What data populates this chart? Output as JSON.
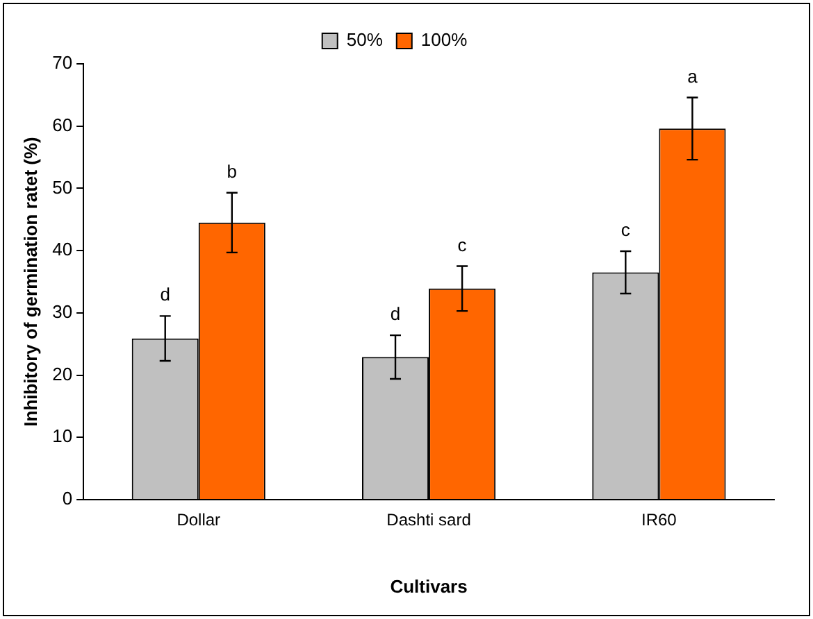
{
  "chart_data": {
    "type": "bar",
    "xlabel": "Cultivars",
    "ylabel": "Inhibitory of germination ratet (%)",
    "categories": [
      "Dollar",
      "Dashti sard",
      "IR60"
    ],
    "series": [
      {
        "name": "50%",
        "color": "#c0c0c0",
        "values": [
          25.9,
          22.9,
          36.5
        ],
        "errors": [
          3.6,
          3.5,
          3.4
        ]
      },
      {
        "name": "100%",
        "color": "#ff6600",
        "values": [
          44.5,
          33.9,
          59.6
        ],
        "errors": [
          4.8,
          3.6,
          5
        ]
      }
    ],
    "ylim": [
      0,
      70
    ],
    "yticks": [
      0,
      10,
      20,
      30,
      40,
      50,
      60,
      70
    ],
    "grid": false,
    "legend": "top",
    "annotations": [
      {
        "text": "d",
        "x": "Dollar",
        "y": 25.9
      },
      {
        "text": "b",
        "x": "Dollar",
        "y": 44.5
      },
      {
        "text": "d",
        "x": "Dashti sard",
        "y": 22.9
      },
      {
        "text": "c",
        "x": "Dashti sard",
        "y": 33.9
      },
      {
        "text": "c",
        "x": "IR60",
        "y": 36.5
      },
      {
        "text": "a",
        "x": "IR60",
        "y": 59.6
      }
    ]
  }
}
